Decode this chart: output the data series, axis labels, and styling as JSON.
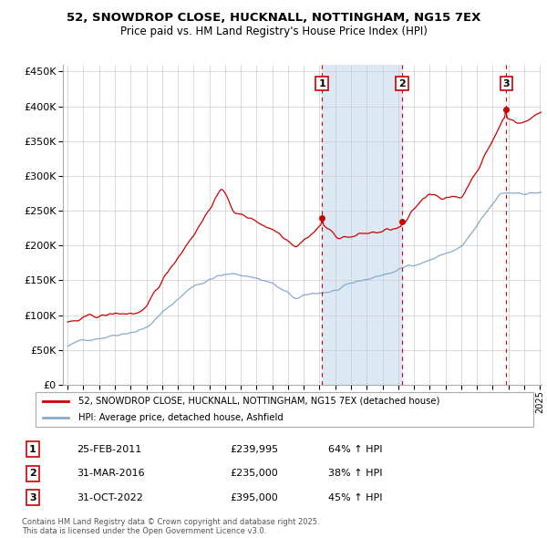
{
  "title_line1": "52, SNOWDROP CLOSE, HUCKNALL, NOTTINGHAM, NG15 7EX",
  "title_line2": "Price paid vs. HM Land Registry's House Price Index (HPI)",
  "legend_red": "52, SNOWDROP CLOSE, HUCKNALL, NOTTINGHAM, NG15 7EX (detached house)",
  "legend_blue": "HPI: Average price, detached house, Ashfield",
  "transactions": [
    {
      "num": 1,
      "date": "25-FEB-2011",
      "price": 239995,
      "pct": "64%",
      "dir": "↑"
    },
    {
      "num": 2,
      "date": "31-MAR-2016",
      "price": 235000,
      "pct": "38%",
      "dir": "↑"
    },
    {
      "num": 3,
      "date": "31-OCT-2022",
      "price": 395000,
      "pct": "45%",
      "dir": "↑"
    }
  ],
  "footer": "Contains HM Land Registry data © Crown copyright and database right 2025.\nThis data is licensed under the Open Government Licence v3.0.",
  "ylim": [
    0,
    460000
  ],
  "yticks": [
    0,
    50000,
    100000,
    150000,
    200000,
    250000,
    300000,
    350000,
    400000,
    450000
  ],
  "year_start": 1995,
  "year_end": 2025,
  "red_color": "#cc0000",
  "blue_color": "#88aacc",
  "grid_color": "#cccccc",
  "vline_color": "#cc0000",
  "shade_color": "#dce9f5"
}
